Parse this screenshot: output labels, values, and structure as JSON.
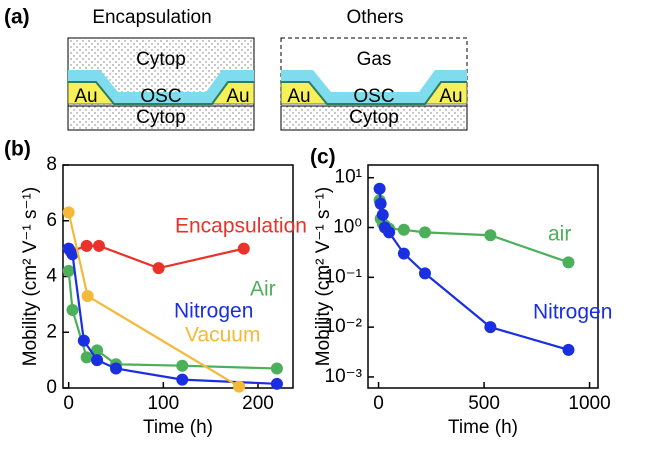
{
  "diagram": {
    "label": "(a)",
    "left": {
      "title": "Encapsulation",
      "top": "Cytop",
      "au_left": "Au",
      "osc": "OSC",
      "au_right": "Au",
      "bottom": "Cytop"
    },
    "right": {
      "title": "Others",
      "top": "Gas",
      "au_left": "Au",
      "osc": "OSC",
      "au_right": "Au",
      "bottom": "Cytop"
    }
  },
  "chart_data": [
    {
      "type": "line",
      "panel": "(b)",
      "xlabel": "Time (h)",
      "ylabel": "Mobility (cm² V⁻¹ s⁻¹)",
      "xlim": [
        -6,
        237
      ],
      "xticks": [
        0,
        100,
        200
      ],
      "ylim": [
        0,
        8
      ],
      "yticks": [
        0,
        2,
        4,
        6,
        8
      ],
      "series": [
        {
          "name": "Encapsulation",
          "color": "#e8322a",
          "x": [
            2,
            19,
            32,
            95,
            185
          ],
          "values": [
            4.9,
            5.1,
            5.1,
            4.3,
            5.0
          ]
        },
        {
          "name": "Air",
          "color": "#4caf5a",
          "x": [
            0,
            4,
            19,
            30,
            50,
            120,
            220
          ],
          "values": [
            4.2,
            2.8,
            1.1,
            1.35,
            0.85,
            0.8,
            0.7
          ]
        },
        {
          "name": "Nitrogen",
          "color": "#1a2fe0",
          "x": [
            0,
            4,
            16,
            30,
            50,
            120,
            220
          ],
          "values": [
            5.0,
            4.8,
            1.7,
            1.0,
            0.7,
            0.3,
            0.15
          ]
        },
        {
          "name": "Vacuum",
          "color": "#f5b93a",
          "x": [
            0,
            20,
            180
          ],
          "values": [
            6.3,
            3.3,
            0.05
          ]
        }
      ]
    },
    {
      "type": "line",
      "panel": "(c)",
      "xlabel": "Time (h)",
      "ylabel": "Mobility (cm² V⁻¹ s⁻¹)",
      "log_y": true,
      "xlim": [
        -50,
        1040
      ],
      "xticks": [
        0,
        500,
        1000
      ],
      "ylim": [
        0.0006,
        18
      ],
      "yticks": [
        {
          "value": 0.001,
          "label": "10⁻³"
        },
        {
          "value": 0.01,
          "label": "10⁻²"
        },
        {
          "value": 0.1,
          "label": "10⁻¹"
        },
        {
          "value": 1,
          "label": "10⁰"
        },
        {
          "value": 10,
          "label": "10¹"
        }
      ],
      "series": [
        {
          "name": "air",
          "color": "#4caf5a",
          "x": [
            5,
            10,
            20,
            30,
            50,
            120,
            220,
            530,
            900
          ],
          "values": [
            3.5,
            1.5,
            1.2,
            1.1,
            0.95,
            0.9,
            0.8,
            0.7,
            0.2
          ]
        },
        {
          "name": "Nitrogen",
          "color": "#1a2fe0",
          "x": [
            5,
            10,
            20,
            30,
            50,
            120,
            220,
            530,
            900
          ],
          "values": [
            6,
            3,
            1.8,
            1.0,
            0.8,
            0.3,
            0.12,
            0.01,
            0.0035
          ]
        }
      ]
    }
  ]
}
